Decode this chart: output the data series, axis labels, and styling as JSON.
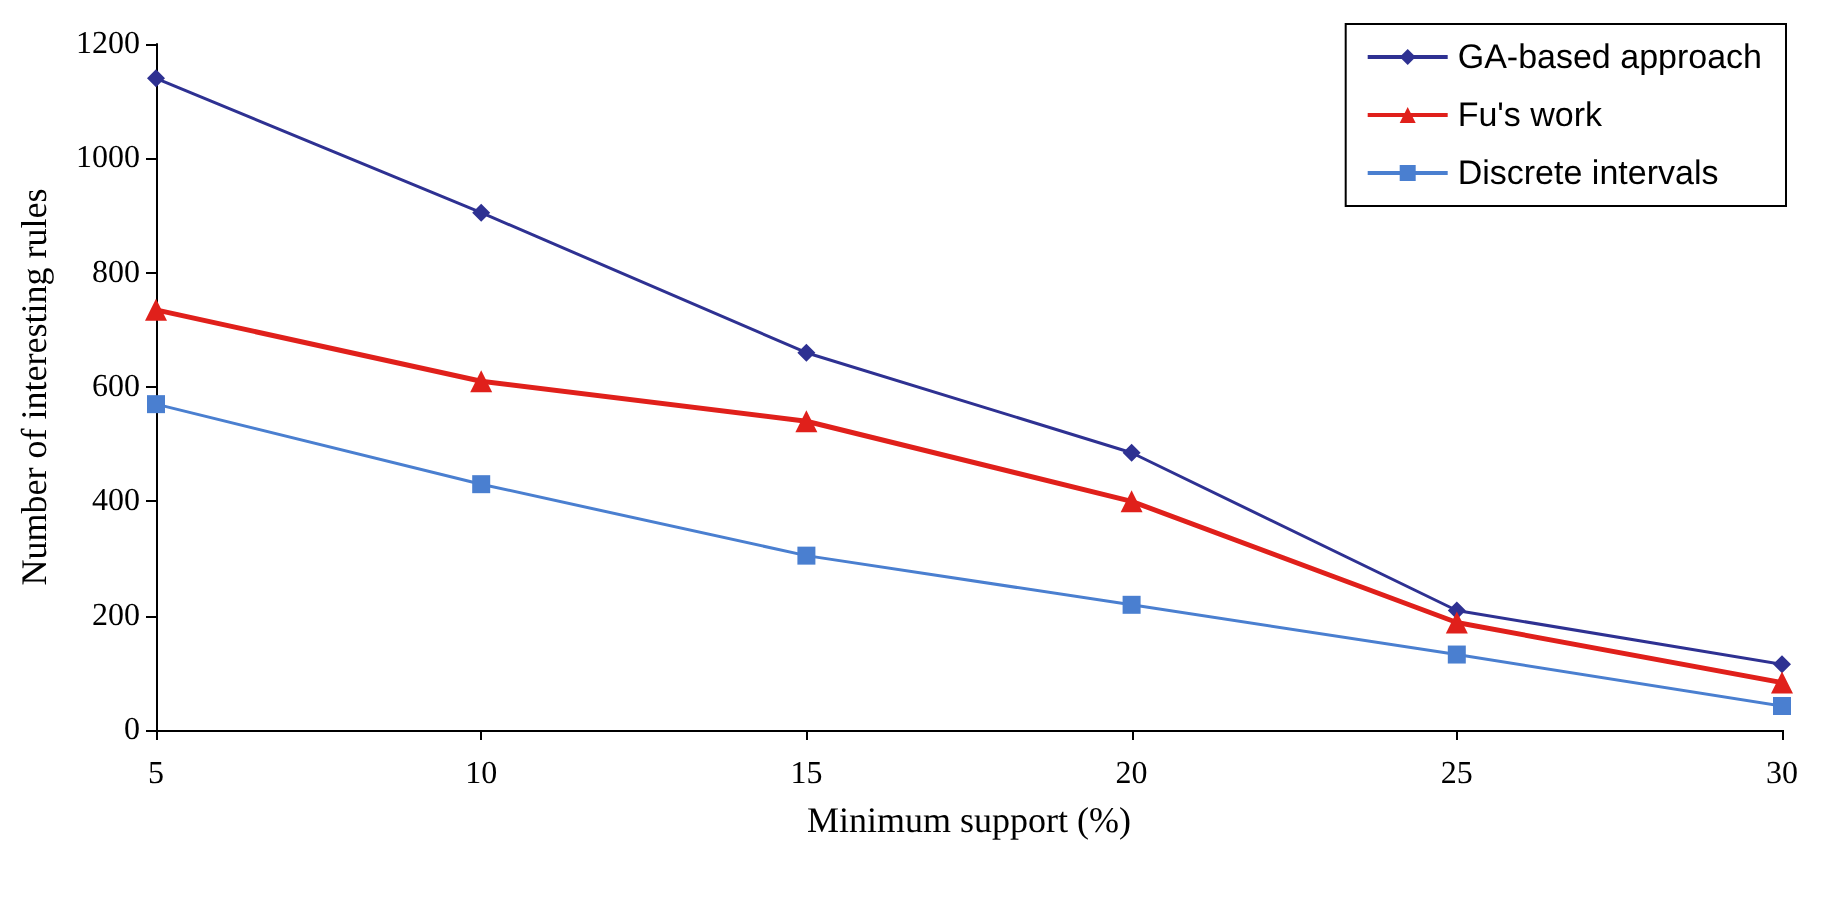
{
  "chart_data": {
    "type": "line",
    "xlabel": "Minimum support (%)",
    "ylabel": "Number of interesting rules",
    "x": [
      5,
      10,
      15,
      20,
      25,
      30
    ],
    "series": [
      {
        "name": "GA-based approach",
        "color": "#2e3192",
        "marker": "diamond",
        "values": [
          1140,
          905,
          660,
          485,
          209,
          115
        ]
      },
      {
        "name": "Fu's work",
        "color": "#e0201b",
        "marker": "triangle",
        "values": [
          735,
          610,
          540,
          400,
          188,
          83
        ]
      },
      {
        "name": "Discrete intervals",
        "color": "#4a7fd0",
        "marker": "square",
        "values": [
          570,
          430,
          305,
          219,
          132,
          42
        ]
      }
    ],
    "xlim": [
      5,
      30
    ],
    "xticks": [
      5,
      10,
      15,
      20,
      25,
      30
    ],
    "ylim": [
      0,
      1200
    ],
    "yticks": [
      0,
      200,
      400,
      600,
      800,
      1000,
      1200
    ],
    "grid": false,
    "legend": "top right",
    "line_style": "solid"
  }
}
